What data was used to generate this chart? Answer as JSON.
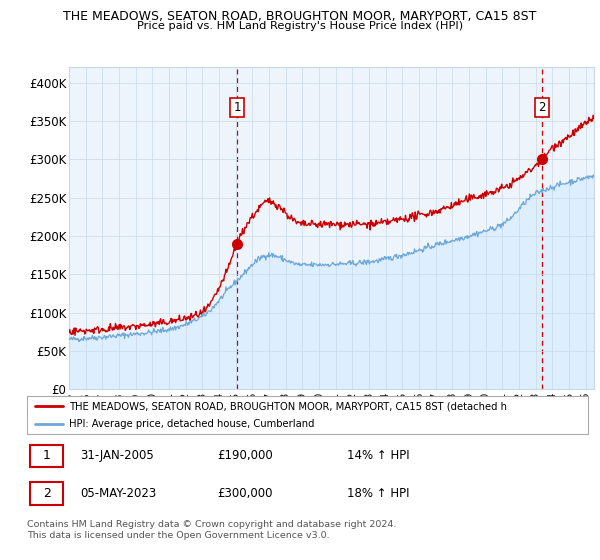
{
  "title_line1": "THE MEADOWS, SEATON ROAD, BROUGHTON MOOR, MARYPORT, CA15 8ST",
  "title_line2": "Price paid vs. HM Land Registry's House Price Index (HPI)",
  "ylim": [
    0,
    420000
  ],
  "yticks": [
    0,
    50000,
    100000,
    150000,
    200000,
    250000,
    300000,
    350000,
    400000
  ],
  "ytick_labels": [
    "£0",
    "£50K",
    "£100K",
    "£150K",
    "£200K",
    "£250K",
    "£300K",
    "£350K",
    "£400K"
  ],
  "hpi_color": "#6ea8d8",
  "hpi_fill_color": "#ddeeff",
  "price_color": "#cc0000",
  "dashed_line_color": "#cc0000",
  "marker_color": "#cc0000",
  "background_color": "#ffffff",
  "plot_bg_color": "#eef4fb",
  "grid_color": "#c8d8e8",
  "legend_label_red": "THE MEADOWS, SEATON ROAD, BROUGHTON MOOR, MARYPORT, CA15 8ST (detached h",
  "legend_label_blue": "HPI: Average price, detached house, Cumberland",
  "annotation1_date": "31-JAN-2005",
  "annotation1_price": "£190,000",
  "annotation1_hpi": "14% ↑ HPI",
  "annotation2_date": "05-MAY-2023",
  "annotation2_price": "£300,000",
  "annotation2_hpi": "18% ↑ HPI",
  "footnote1": "Contains HM Land Registry data © Crown copyright and database right 2024.",
  "footnote2": "This data is licensed under the Open Government Licence v3.0.",
  "sale1_year": 2005.08,
  "sale1_price": 190000,
  "sale2_year": 2023.37,
  "sale2_price": 300000,
  "xmin": 1995,
  "xmax": 2026.5
}
